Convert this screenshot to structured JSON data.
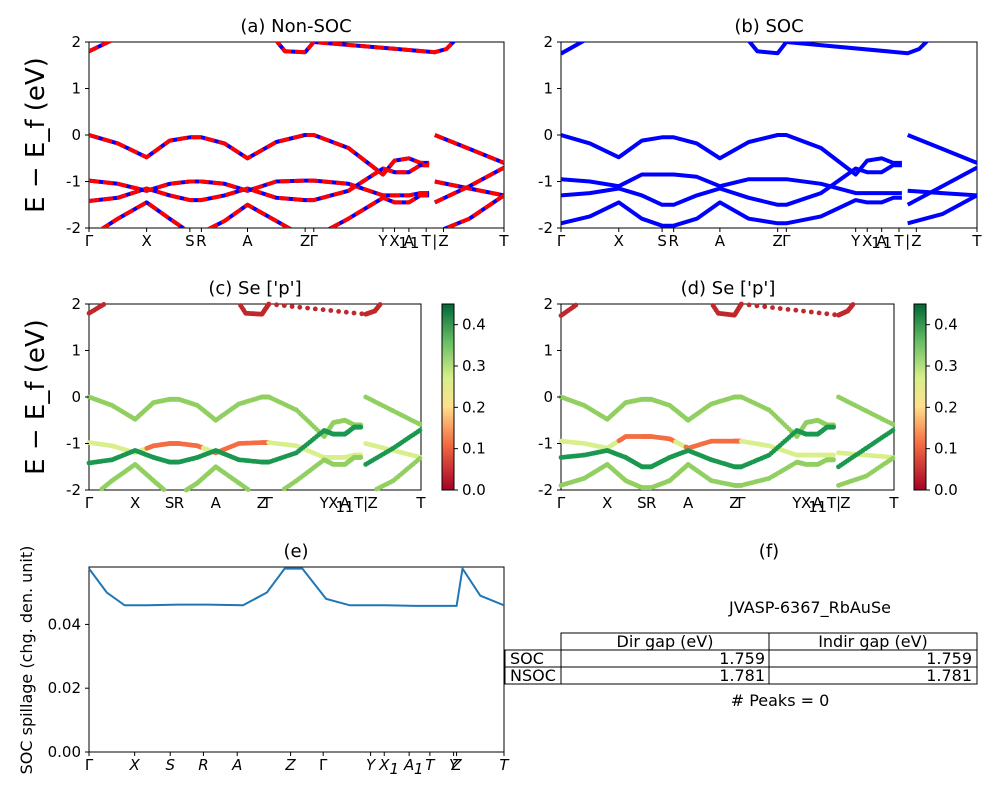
{
  "chart_data": [
    {
      "id": "a",
      "type": "line",
      "title": "(a) Non-SOC",
      "ylabel": "E − E_f (eV)",
      "ylim": [
        -2,
        2
      ],
      "yticks": [
        2,
        1,
        0,
        -1,
        -2
      ],
      "kpath": [
        {
          "k": 0.0,
          "label": "Γ"
        },
        {
          "k": 1.0,
          "label": "X"
        },
        {
          "k": 1.75,
          "label": "S"
        },
        {
          "k": 1.95,
          "label": "R"
        },
        {
          "k": 2.75,
          "label": "A"
        },
        {
          "k": 3.75,
          "label": "Z"
        },
        {
          "k": 3.9,
          "label": "Γ"
        },
        {
          "k": 5.1,
          "label": "Y"
        },
        {
          "k": 5.3,
          "label": "X"
        },
        {
          "k": 5.45,
          "label": "1"
        },
        {
          "k": 5.55,
          "label": "A"
        },
        {
          "k": 5.65,
          "label": "1"
        },
        {
          "k": 5.85,
          "label": "T"
        },
        {
          "k": 6.0,
          "label": "|"
        },
        {
          "k": 6.15,
          "label": "Z"
        },
        {
          "k": 7.2,
          "label": "T"
        }
      ],
      "breaks": [
        5.9
      ],
      "series": [
        {
          "name": "band v1",
          "x": [
            0,
            0.5,
            1,
            1.4,
            1.75,
            1.95,
            2.35,
            2.75,
            3.25,
            3.75,
            3.9,
            4.5,
            5.1,
            5.3,
            5.55,
            5.75,
            5.9
          ],
          "values": [
            0,
            -0.18,
            -0.48,
            -0.12,
            -0.05,
            -0.05,
            -0.18,
            -0.5,
            -0.15,
            0.0,
            0.0,
            -0.28,
            -0.85,
            -0.55,
            -0.5,
            -0.6,
            -0.6
          ]
        },
        {
          "name": "band v2",
          "x": [
            0,
            0.5,
            1,
            1.4,
            1.75,
            1.95,
            2.35,
            2.75,
            3.25,
            3.75,
            3.9,
            4.5,
            5.1,
            5.3,
            5.55,
            5.75,
            5.9
          ],
          "values": [
            -0.98,
            -1.05,
            -1.2,
            -1.05,
            -1.0,
            -1.0,
            -1.05,
            -1.2,
            -1.0,
            -0.98,
            -0.98,
            -1.05,
            -1.3,
            -1.3,
            -1.3,
            -1.25,
            -1.25
          ]
        },
        {
          "name": "band v3",
          "x": [
            0,
            0.5,
            1,
            1.4,
            1.75,
            1.95,
            2.35,
            2.75,
            3.25,
            3.75,
            3.9,
            4.5,
            5.1,
            5.3,
            5.55,
            5.75,
            5.9
          ],
          "values": [
            -1.42,
            -1.35,
            -1.15,
            -1.3,
            -1.4,
            -1.4,
            -1.3,
            -1.15,
            -1.35,
            -1.4,
            -1.4,
            -1.2,
            -0.72,
            -0.8,
            -0.8,
            -0.65,
            -0.65
          ]
        },
        {
          "name": "band v4",
          "x": [
            0,
            0.5,
            1,
            1.4,
            1.75,
            1.95,
            2.35,
            2.75,
            3.25,
            3.75,
            3.9,
            4.5,
            5.1,
            5.3,
            5.55,
            5.75,
            5.9
          ],
          "values": [
            -2.2,
            -1.8,
            -1.45,
            -1.8,
            -2.1,
            -2.1,
            -1.85,
            -1.5,
            -1.85,
            -2.2,
            -2.2,
            -1.8,
            -1.35,
            -1.45,
            -1.45,
            -1.3,
            -1.3
          ]
        },
        {
          "name": "band c1",
          "x": [
            0,
            0.5,
            1,
            3.0,
            3.4,
            3.75,
            3.9,
            6.0,
            6.2,
            6.4
          ],
          "values": [
            1.8,
            2.1,
            2.3,
            2.4,
            1.8,
            1.78,
            2.0,
            1.78,
            1.85,
            2.1
          ]
        },
        {
          "name": "band v1 seg2",
          "x": [
            6.0,
            6.6,
            7.2
          ],
          "values": [
            0,
            -0.3,
            -0.6
          ]
        },
        {
          "name": "band v2 seg2",
          "x": [
            6.0,
            6.6,
            7.2
          ],
          "values": [
            -1.0,
            -1.15,
            -1.3
          ]
        },
        {
          "name": "band v3 seg2",
          "x": [
            6.0,
            6.6,
            7.2
          ],
          "values": [
            -1.45,
            -1.1,
            -0.7
          ]
        },
        {
          "name": "band v4 seg2",
          "x": [
            6.0,
            6.6,
            7.2
          ],
          "values": [
            -2.1,
            -1.8,
            -1.3
          ]
        }
      ]
    },
    {
      "id": "b",
      "type": "line",
      "title": "(b) SOC",
      "ylim": [
        -2,
        2
      ],
      "yticks": [
        2,
        1,
        0,
        -1,
        -2
      ],
      "kpath": [
        {
          "k": 0.0,
          "label": "Γ"
        },
        {
          "k": 1.0,
          "label": "X"
        },
        {
          "k": 1.75,
          "label": "S"
        },
        {
          "k": 1.95,
          "label": "R"
        },
        {
          "k": 2.75,
          "label": "A"
        },
        {
          "k": 3.75,
          "label": "Z"
        },
        {
          "k": 3.9,
          "label": "Γ"
        },
        {
          "k": 5.1,
          "label": "Y"
        },
        {
          "k": 5.3,
          "label": "X"
        },
        {
          "k": 5.45,
          "label": "1"
        },
        {
          "k": 5.55,
          "label": "A"
        },
        {
          "k": 5.65,
          "label": "1"
        },
        {
          "k": 5.85,
          "label": "T"
        },
        {
          "k": 6.0,
          "label": "|"
        },
        {
          "k": 6.15,
          "label": "Z"
        },
        {
          "k": 7.2,
          "label": "T"
        }
      ],
      "breaks": [
        5.9
      ],
      "series": [
        {
          "name": "band v1",
          "x": [
            0,
            0.5,
            1,
            1.4,
            1.75,
            1.95,
            2.35,
            2.75,
            3.25,
            3.75,
            3.9,
            4.5,
            5.1,
            5.3,
            5.55,
            5.75,
            5.9
          ],
          "values": [
            0,
            -0.18,
            -0.48,
            -0.12,
            -0.05,
            -0.05,
            -0.18,
            -0.5,
            -0.15,
            0.0,
            0.0,
            -0.28,
            -0.85,
            -0.55,
            -0.5,
            -0.6,
            -0.6
          ]
        },
        {
          "name": "band v2",
          "x": [
            0,
            0.5,
            1,
            1.4,
            1.75,
            1.95,
            2.35,
            2.75,
            3.25,
            3.75,
            3.9,
            4.5,
            5.1,
            5.3,
            5.55,
            5.75,
            5.9
          ],
          "values": [
            -0.95,
            -1.0,
            -1.1,
            -0.85,
            -0.85,
            -0.85,
            -0.9,
            -1.1,
            -0.95,
            -0.95,
            -0.95,
            -1.05,
            -1.25,
            -1.25,
            -1.25,
            -1.25,
            -1.25
          ]
        },
        {
          "name": "band v3",
          "x": [
            0,
            0.5,
            1,
            1.4,
            1.75,
            1.95,
            2.35,
            2.75,
            3.25,
            3.75,
            3.9,
            4.5,
            5.1,
            5.3,
            5.55,
            5.75,
            5.9
          ],
          "values": [
            -1.3,
            -1.25,
            -1.15,
            -1.3,
            -1.5,
            -1.5,
            -1.3,
            -1.15,
            -1.35,
            -1.5,
            -1.5,
            -1.25,
            -0.72,
            -0.8,
            -0.8,
            -0.65,
            -0.65
          ]
        },
        {
          "name": "band v4",
          "x": [
            0,
            0.5,
            1,
            1.4,
            1.75,
            1.95,
            2.35,
            2.75,
            3.25,
            3.75,
            3.9,
            4.5,
            5.1,
            5.3,
            5.55,
            5.75,
            5.9
          ],
          "values": [
            -1.9,
            -1.75,
            -1.45,
            -1.8,
            -1.95,
            -1.95,
            -1.8,
            -1.45,
            -1.8,
            -1.9,
            -1.9,
            -1.75,
            -1.4,
            -1.45,
            -1.45,
            -1.35,
            -1.35
          ]
        },
        {
          "name": "band c1",
          "x": [
            0,
            0.5,
            1,
            3.0,
            3.4,
            3.75,
            3.9,
            6.0,
            6.2,
            6.4
          ],
          "values": [
            1.75,
            2.1,
            2.3,
            2.4,
            1.8,
            1.76,
            2.0,
            1.76,
            1.85,
            2.1
          ]
        },
        {
          "name": "band v1 seg2",
          "x": [
            6.0,
            6.6,
            7.2
          ],
          "values": [
            0,
            -0.3,
            -0.6
          ]
        },
        {
          "name": "band v2 seg2",
          "x": [
            6.0,
            6.6,
            7.2
          ],
          "values": [
            -1.2,
            -1.25,
            -1.3
          ]
        },
        {
          "name": "band v3 seg2",
          "x": [
            6.0,
            6.6,
            7.2
          ],
          "values": [
            -1.5,
            -1.1,
            -0.7
          ]
        },
        {
          "name": "band v4 seg2",
          "x": [
            6.0,
            6.6,
            7.2
          ],
          "values": [
            -1.9,
            -1.7,
            -1.3
          ]
        }
      ]
    },
    {
      "id": "c",
      "type": "scatter",
      "title": "(c)  Se ['p']",
      "ylabel": "E − E_f (eV)",
      "ylim": [
        -2,
        2
      ],
      "yticks": [
        2,
        1,
        0,
        -1,
        -2
      ],
      "colorbar": {
        "min": 0.0,
        "max": 0.45,
        "ticks": [
          "0.0",
          "0.1",
          "0.2",
          "0.3",
          "0.4"
        ]
      },
      "kpath_labels": [
        "Γ",
        "X",
        "SR",
        "A",
        "ZΓ",
        "YX",
        "1",
        "A",
        "1",
        "T",
        "|",
        "Z",
        "T"
      ]
    },
    {
      "id": "d",
      "type": "scatter",
      "title": "(d) Se ['p']",
      "ylim": [
        -2,
        2
      ],
      "yticks": [
        2,
        1,
        0,
        -1,
        -2
      ],
      "colorbar": {
        "min": 0.0,
        "max": 0.45,
        "ticks": [
          "0.0",
          "0.1",
          "0.2",
          "0.3",
          "0.4"
        ]
      },
      "kpath_labels": [
        "Γ",
        "X",
        "SR",
        "A",
        "ZΓ",
        "YX",
        "1",
        "A",
        "1",
        "T",
        "|",
        "Z",
        "T"
      ]
    },
    {
      "id": "e",
      "type": "line",
      "title": "(e)",
      "ylabel": "SOC spillage (chg. den. unit)",
      "ylim": [
        0.0,
        0.058
      ],
      "yticks": [
        "0.04",
        "0.02",
        "0.00"
      ],
      "kpath_labels": [
        "Γ",
        "X",
        "S",
        "R",
        "A",
        "Z",
        "Γ",
        "Y",
        "X",
        "1",
        "A",
        "1",
        "T",
        "Y",
        "Z",
        "T"
      ],
      "x": [
        0,
        0.3,
        0.6,
        1.0,
        1.5,
        2.0,
        2.6,
        3.0,
        3.3,
        3.6,
        4.0,
        4.4,
        5.0,
        5.5,
        6.0,
        6.2,
        6.3,
        6.6,
        7.0
      ],
      "values": [
        0.0575,
        0.05,
        0.046,
        0.046,
        0.0462,
        0.0462,
        0.046,
        0.05,
        0.0575,
        0.0575,
        0.048,
        0.046,
        0.046,
        0.0458,
        0.0458,
        0.0458,
        0.0575,
        0.049,
        0.046
      ]
    }
  ],
  "panel_f": {
    "title": "(f)",
    "material": "JVASP-6367_RbAuSe",
    "headers": [
      "Dir gap (eV)",
      "Indir gap (eV)"
    ],
    "rows": [
      {
        "label": "SOC",
        "dir": "1.759",
        "indir": "1.759"
      },
      {
        "label": "NSOC",
        "dir": "1.781",
        "indir": "1.781"
      }
    ],
    "peaks": "# Peaks = 0"
  }
}
